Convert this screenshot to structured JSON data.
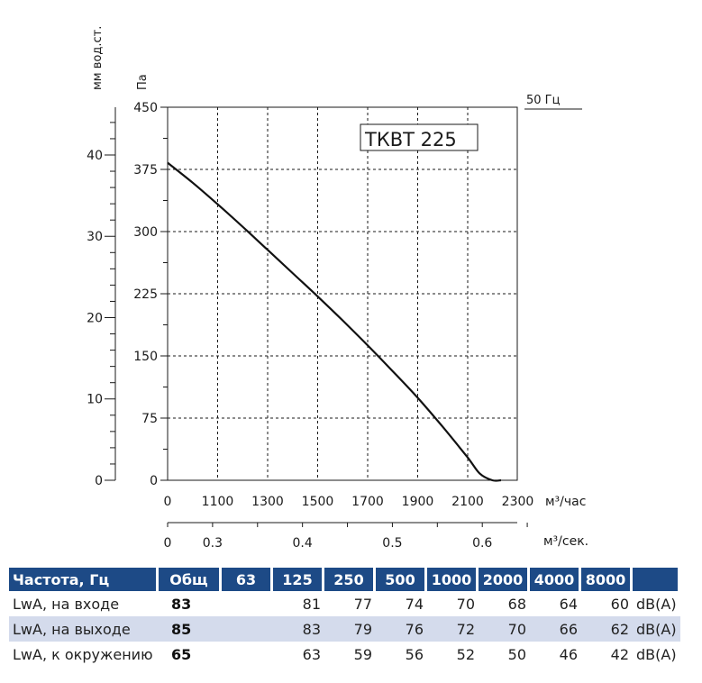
{
  "chart_data": {
    "type": "line",
    "title": "ТКВТ 225",
    "frequency_label": "50 Гц",
    "y_left_label": "мм вод.ст.",
    "y_left_ticks": [
      "0",
      "10",
      "20",
      "30",
      "40"
    ],
    "y_right_label": "Па",
    "y_ticks": [
      "0",
      "75",
      "150",
      "225",
      "300",
      "375",
      "450"
    ],
    "ylim": [
      0,
      450
    ],
    "xlim": [
      900,
      2300
    ],
    "x_ticks": [
      "0",
      "1100",
      "1300",
      "1500",
      "1700",
      "1900",
      "2100",
      "2300"
    ],
    "x_unit": "м³/час",
    "x2_ticks": [
      "0",
      "0.3",
      "0.4",
      "0.5",
      "0.6"
    ],
    "x2_unit": "м³/сек.",
    "grid": true,
    "series": [
      {
        "x": [
          900,
          1000,
          1100,
          1200,
          1300,
          1400,
          1500,
          1600,
          1700,
          1800,
          1900,
          2000,
          2100,
          2150,
          2200,
          2235
        ],
        "y": [
          383,
          359,
          333,
          306,
          278,
          250,
          222,
          193,
          163,
          132,
          100,
          65,
          28,
          8,
          -10,
          0
        ]
      }
    ]
  },
  "table": {
    "headers": [
      "Частота, Гц",
      "Общ",
      "63",
      "125",
      "250",
      "500",
      "1000",
      "2000",
      "4000",
      "8000",
      ""
    ],
    "rows": [
      {
        "label": "LwA, на входе",
        "total": "83",
        "values": [
          "",
          "81",
          "77",
          "74",
          "70",
          "68",
          "64",
          "60"
        ],
        "unit": "dB(A)"
      },
      {
        "label": "LwA, на выходе",
        "total": "85",
        "values": [
          "",
          "83",
          "79",
          "76",
          "72",
          "70",
          "66",
          "62"
        ],
        "unit": "dB(A)"
      },
      {
        "label": "LwA, к окружению",
        "total": "65",
        "values": [
          "",
          "63",
          "59",
          "56",
          "52",
          "50",
          "46",
          "42"
        ],
        "unit": "dB(A)"
      }
    ]
  }
}
